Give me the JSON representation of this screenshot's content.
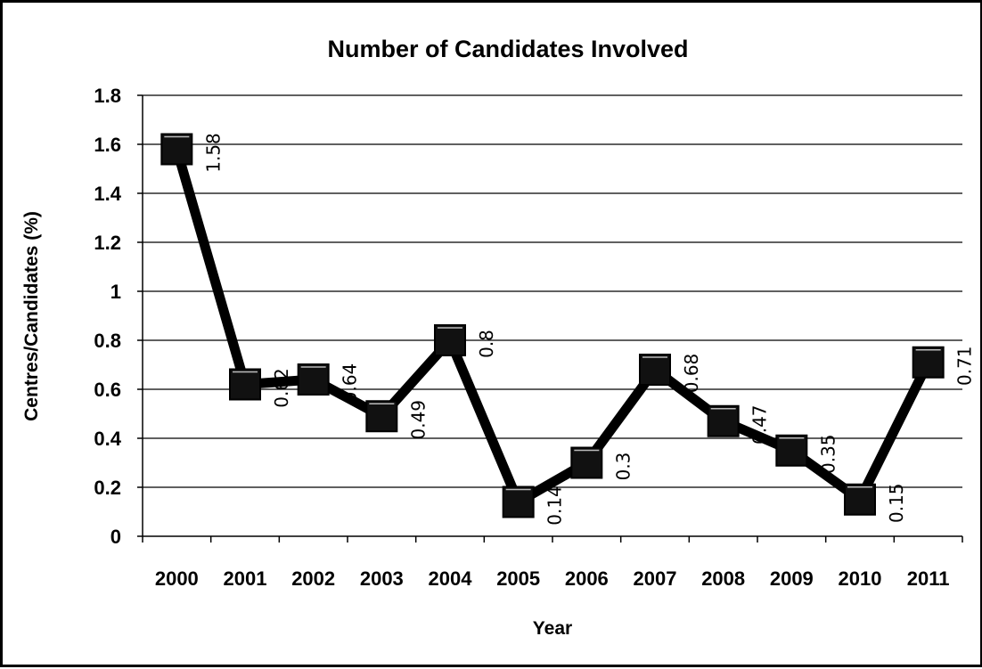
{
  "chart_data": {
    "type": "line",
    "title": "Number of Candidates Involved",
    "xlabel": "Year",
    "ylabel": "Centres/Candidates (%)",
    "categories": [
      "2000",
      "2001",
      "2002",
      "2003",
      "2004",
      "2005",
      "2006",
      "2007",
      "2008",
      "2009",
      "2010",
      "2011"
    ],
    "series": [
      {
        "values": [
          1.58,
          0.62,
          0.64,
          0.49,
          0.8,
          0.14,
          0.3,
          0.68,
          0.47,
          0.35,
          0.15,
          0.71
        ],
        "data_labels": [
          "1.58",
          "0.62",
          "0.64",
          "0.49",
          "0.8",
          "0.14",
          "0.3",
          "0.68",
          "0.47",
          "0.35",
          "0.15",
          "0.71"
        ],
        "color": "#000000",
        "marker": "square"
      }
    ],
    "ylim": [
      0,
      1.8
    ],
    "yticks": [
      "0",
      "0.2",
      "0.4",
      "0.6",
      "0.8",
      "1",
      "1.2",
      "1.4",
      "1.6",
      "1.8"
    ],
    "grid": true,
    "legend": "none"
  }
}
